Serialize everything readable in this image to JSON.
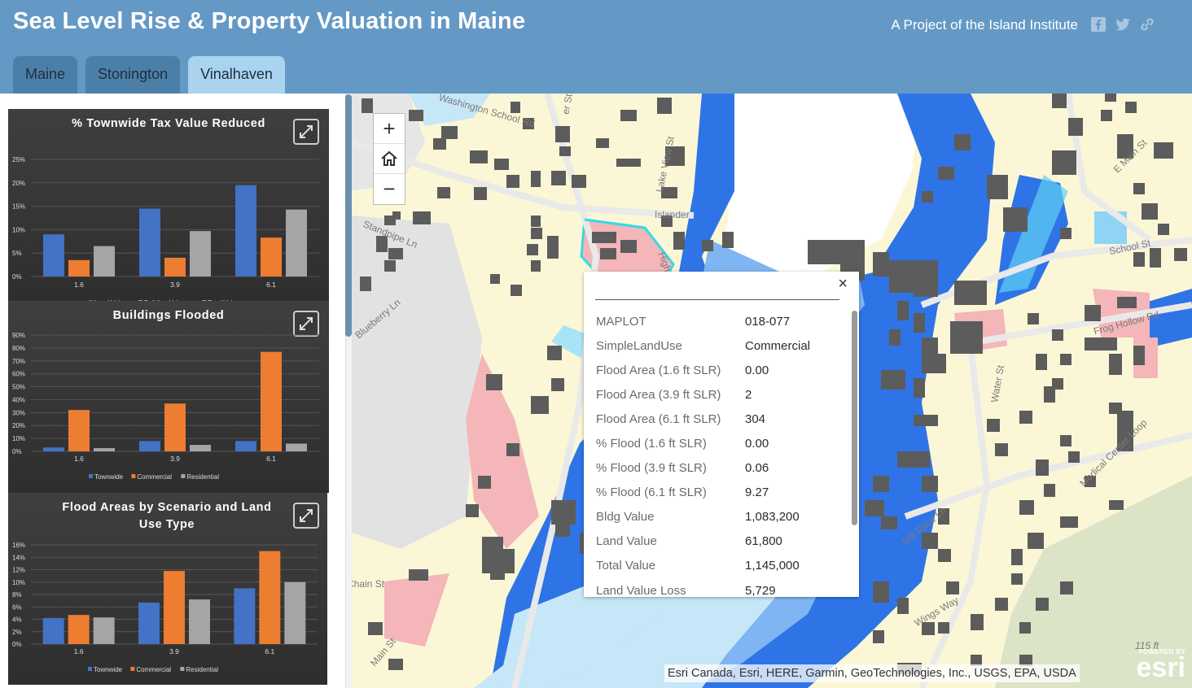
{
  "header": {
    "title": "Sea Level Rise & Property Valuation in Maine",
    "project_link": "A Project of the Island Institute",
    "icons": [
      "facebook-icon",
      "twitter-icon",
      "link-icon"
    ]
  },
  "tabs": [
    {
      "label": "Maine",
      "active": false
    },
    {
      "label": "Stonington",
      "active": false
    },
    {
      "label": "Vinalhaven",
      "active": true
    }
  ],
  "colors": {
    "header": "#6499c5",
    "tab_active": "#a9d3ee",
    "tab": "#4c7fa8",
    "series_blue": "#4472c4",
    "series_orange": "#ed7d31",
    "series_gray": "#a5a5a5",
    "flood_dark": "#2f74e6",
    "flood_light": "#7fb5f2",
    "water": "#c5e7f8",
    "land": "#fbf7d6",
    "commercial": "#f4b6b8",
    "building": "#5c5c5c"
  },
  "chart_data": [
    {
      "type": "bar",
      "title": "% Townwide Tax Value Reduced",
      "categories": [
        "1.6",
        "3.9",
        "6.1"
      ],
      "series": [
        {
          "name": "Land Value",
          "values": [
            9,
            14.5,
            19.5
          ]
        },
        {
          "name": "Building Value",
          "values": [
            3.5,
            4,
            8.3
          ]
        },
        {
          "name": "Total Value",
          "values": [
            6.5,
            9.7,
            14.3
          ]
        }
      ],
      "yticks": [
        "25%",
        "20%",
        "15%",
        "10%",
        "5%",
        "0%"
      ],
      "ylim": [
        0,
        25
      ],
      "grid": true,
      "legend": "bottom"
    },
    {
      "type": "bar",
      "title": "Buildings Flooded",
      "categories": [
        "1.6",
        "3.9",
        "6.1"
      ],
      "series": [
        {
          "name": "Townwide",
          "values": [
            3,
            8,
            8
          ]
        },
        {
          "name": "Commercial",
          "values": [
            32,
            37,
            77
          ]
        },
        {
          "name": "Residential",
          "values": [
            2.5,
            5,
            6
          ]
        }
      ],
      "yticks": [
        "90%",
        "80%",
        "70%",
        "60%",
        "50%",
        "40%",
        "30%",
        "20%",
        "10%",
        "0%"
      ],
      "ylim": [
        0,
        90
      ],
      "grid": true,
      "legend": "bottom"
    },
    {
      "type": "bar",
      "title": "Flood Areas by Scenario and Land Use Type",
      "categories": [
        "1.6",
        "3.9",
        "6.1"
      ],
      "series": [
        {
          "name": "Townwide",
          "values": [
            4.2,
            6.7,
            9
          ]
        },
        {
          "name": "Commercial",
          "values": [
            4.7,
            11.8,
            15
          ]
        },
        {
          "name": "Residential",
          "values": [
            4.3,
            7.2,
            10
          ]
        }
      ],
      "yticks": [
        "16%",
        "14%",
        "12%",
        "10%",
        "8%",
        "6%",
        "4%",
        "2%",
        "0%"
      ],
      "ylim": [
        0,
        16
      ],
      "grid": true,
      "legend": "bottom"
    }
  ],
  "map": {
    "street_labels": [
      "Washington School Rd",
      "Lake View St",
      "Standpipe Ln",
      "Blueberry Ln",
      "Islander",
      "High",
      "Water St",
      "E Main St",
      "School St",
      "Frog Hollow Rd",
      "Medical Center Loop",
      "Mill Race Ln",
      "Main St",
      "Chain St",
      "Wings Way",
      "er St",
      "115 ft"
    ],
    "zoom_in": "+",
    "home": "home-icon",
    "zoom_out": "−",
    "attribution": "Esri Canada, Esri, HERE, Garmin, GeoTechnologies, Inc., USGS, EPA, USDA",
    "logo_powered": "POWERED BY",
    "logo_text": "esri"
  },
  "popup": {
    "close": "×",
    "rows": [
      {
        "key": "MAPLOT",
        "value": "018-077"
      },
      {
        "key": "SimpleLandUse",
        "value": "Commercial"
      },
      {
        "key": "Flood Area (1.6 ft SLR)",
        "value": "0.00"
      },
      {
        "key": "Flood Area (3.9 ft SLR)",
        "value": "2"
      },
      {
        "key": "Flood Area (6.1 ft SLR)",
        "value": "304"
      },
      {
        "key": "% Flood (1.6 ft SLR)",
        "value": "0.00"
      },
      {
        "key": "% Flood (3.9 ft SLR)",
        "value": "0.06"
      },
      {
        "key": "% Flood (6.1 ft SLR)",
        "value": "9.27"
      },
      {
        "key": "Bldg Value",
        "value": "1,083,200"
      },
      {
        "key": "Land Value",
        "value": "61,800"
      },
      {
        "key": "Total Value",
        "value": "1,145,000"
      },
      {
        "key": "Land Value Loss",
        "value": "5,729"
      }
    ]
  }
}
